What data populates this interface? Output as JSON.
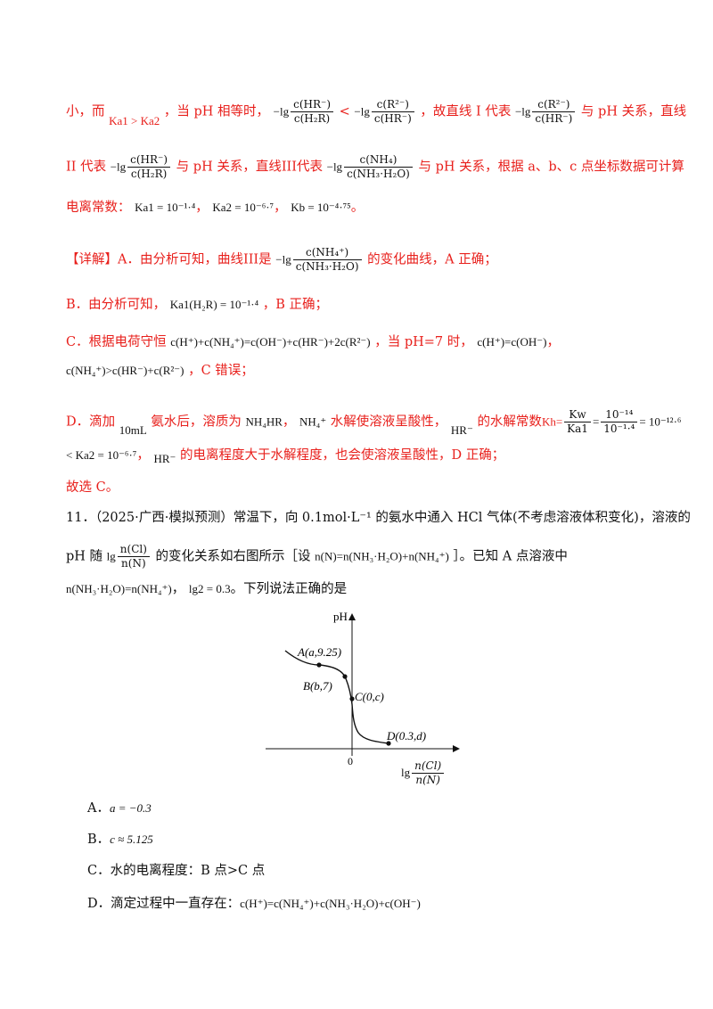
{
  "para1": {
    "prefix": "小，而",
    "ka_cmp": "Ka1 > Ka2",
    "mid1": "，当 pH 相等时，",
    "expr1_num": "c(HR⁻)",
    "expr1_den": "c(H₂R)",
    "cmp": "<",
    "expr2_num": "c(R²⁻)",
    "expr2_den": "c(HR⁻)",
    "mid2": "，故直线 I 代表",
    "expr3_num": "c(R²⁻)",
    "expr3_den": "c(HR⁻)",
    "tail": "与 pH 关系，直线"
  },
  "para2": {
    "prefix": "II 代表",
    "expr1_num": "c(HR⁻)",
    "expr1_den": "c(H₂R)",
    "mid": "与 pH 关系，直线III代表",
    "expr2_num": "c(NH₄)",
    "expr2_den": "c(NH₃·H₂O)",
    "tail": "与 pH 关系，根据 a、b、c 点坐标数据可计算"
  },
  "para3": {
    "text": "电离常数：",
    "k1": "Ka1 = 10⁻¹·⁴",
    "k2": "Ka2 = 10⁻⁶·⁷",
    "kb": "Kb = 10⁻⁴·⁷⁵",
    "end": "。"
  },
  "detail": {
    "tag": "【详解】",
    "a_text": "A．由分析可知，曲线III是",
    "expr_num": "c(NH₄⁺)",
    "expr_den": "c(NH₃·H₂O)",
    "a_tail": "的变化曲线，A 正确；"
  },
  "optB": {
    "text": "B．由分析可知，",
    "expr": "Ka1(H₂R) = 10⁻¹·⁴",
    "tail": "，B 正确；"
  },
  "optC": {
    "line1_text": "C．根据电荷守恒",
    "line1_expr": "c(H⁺)+c(NH₄⁺)=c(OH⁻)+c(HR⁻)+2c(R²⁻)",
    "line1_mid": "，当 pH=7 时，",
    "line1_expr2": "c(H⁺)=c(OH⁻)",
    "line1_end": "，",
    "line2_expr": "c(NH₄⁺)>c(HR⁻)+c(R²⁻)",
    "line2_tail": "，C 错误；"
  },
  "optD": {
    "line1_a": "D．滴加",
    "vol": "10mL",
    "line1_b": "氨水后，溶质为",
    "solute": "NH₄HR",
    "line1_c": "，",
    "ion": "NH₄⁺",
    "line1_d": "水解使溶液呈酸性，",
    "hr": "HR⁻",
    "line1_e": "的水解常数",
    "kh": "Kh=",
    "kh_num": "Kw",
    "kh_den": "Ka1",
    "kh_eq_num": "10⁻¹⁴",
    "kh_eq_den": "10⁻¹·⁴",
    "kh_result": "= 10⁻¹²·⁶",
    "line2_expr": "< Ka2 = 10⁻⁶·⁷",
    "line2_b": "，",
    "line2_hr": "HR⁻",
    "line2_tail": "的电离程度大于水解程度，也会使溶液呈酸性，D 正确；"
  },
  "conclusion": "故选 C。",
  "q11": {
    "num": "11．",
    "source": "（2025·广西·模拟预测）",
    "line1": "常温下，向 0.1mol·L⁻¹ 的氨水中通入 HCl 气体(不考虑溶液体积变化)，溶液的",
    "line2_a": "pH 随",
    "line2_frac_num": "n(Cl)",
    "line2_frac_den": "n(N)",
    "line2_b": "的变化关系如右图所示［设",
    "line2_expr": "n(N)=n(NH₃·H₂O)+n(NH₄⁺)",
    "line2_c": "］。已知 A 点溶液中",
    "line3_expr": "n(NH₃·H₂O)=n(NH₄⁺)",
    "line3_b": "，",
    "line3_lg": "lg2 = 0.3",
    "line3_c": "。下列说法正确的是"
  },
  "graph": {
    "ylabel": "pH",
    "xlabel_prefix": "lg",
    "xlabel_num": "n(Cl)",
    "xlabel_den": "n(N)",
    "origin": "0",
    "point_a": "A(a,9.25)",
    "point_b": "B(b,7)",
    "point_c": "C(0,c)",
    "point_d": "D(0.3,d)"
  },
  "options": {
    "A": "A．",
    "A_expr": "a = −0.3",
    "B": "B．",
    "B_expr": "c ≈ 5.125",
    "C": "C．水的电离程度：B 点>C 点",
    "D": "D．滴定过程中一直存在：",
    "D_expr": "c(H⁺)=c(NH₄⁺)+c(NH₃·H₂O)+c(OH⁻)"
  }
}
